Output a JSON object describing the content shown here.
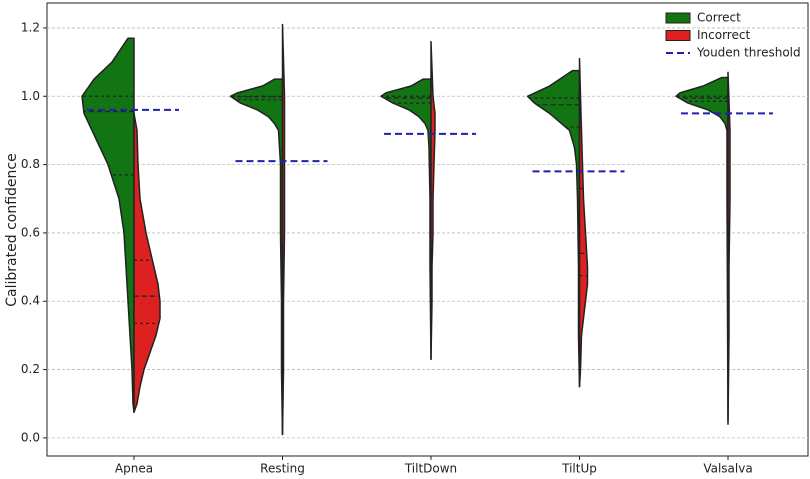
{
  "chart_data": {
    "type": "violin",
    "ylabel": "Calibrated confidence",
    "categories": [
      "Apnea",
      "Resting",
      "TiltDown",
      "TiltUp",
      "Valsalva"
    ],
    "ylim": [
      -0.053,
      1.273
    ],
    "yticks": [
      {
        "value": 0,
        "label": "0.0"
      },
      0.2,
      0.4,
      0.6,
      0.8,
      {
        "value": 1,
        "label": "1.0"
      },
      1.2
    ],
    "grid": true,
    "legend": "upper right",
    "series": [
      {
        "name": "Correct",
        "color": "#137413",
        "side": "left",
        "violins": [
          {
            "y": [
              1.17,
              1.1,
              1.05,
              1.0,
              0.95,
              0.9,
              0.8,
              0.7,
              0.6,
              0.5,
              0.4,
              0.3,
              0.2,
              0.1,
              0.075
            ],
            "width": [
              6,
              22,
              40,
              52,
              50,
              42,
              26,
              15,
              10,
              8,
              6,
              4,
              2,
              1,
              0
            ],
            "quartiles": [
              0.77,
              0.955,
              1.0
            ]
          },
          {
            "y": [
              1.05,
              1.03,
              1.01,
              1.0,
              0.98,
              0.96,
              0.94,
              0.92,
              0.9,
              0.8,
              0.6,
              0.4,
              0.2,
              0.01
            ],
            "width": [
              8,
              20,
              45,
              52,
              42,
              25,
              14,
              8,
              4,
              2,
              2,
              1,
              1,
              0
            ],
            "quartiles": [
              0.99,
              0.998,
              1.0
            ]
          },
          {
            "y": [
              1.05,
              1.03,
              1.01,
              1.0,
              0.98,
              0.96,
              0.94,
              0.92,
              0.9,
              0.85,
              0.7,
              0.5,
              0.23
            ],
            "width": [
              8,
              20,
              45,
              50,
              38,
              22,
              12,
              6,
              3,
              2,
              1,
              1,
              0
            ],
            "quartiles": [
              0.98,
              0.995,
              1.0
            ]
          },
          {
            "y": [
              1.075,
              1.03,
              1.0,
              0.98,
              0.95,
              0.92,
              0.9,
              0.85,
              0.8,
              0.7,
              0.5,
              0.3,
              0.15
            ],
            "width": [
              7,
              30,
              52,
              45,
              30,
              18,
              10,
              5,
              3,
              2,
              1,
              1,
              0
            ],
            "quartiles": [
              0.91,
              0.975,
              0.995
            ]
          },
          {
            "y": [
              1.055,
              1.03,
              1.01,
              1.0,
              0.98,
              0.96,
              0.94,
              0.92,
              0.9,
              0.7,
              0.05
            ],
            "width": [
              6,
              25,
              48,
              52,
              40,
              20,
              8,
              3,
              1,
              1,
              0
            ],
            "quartiles": [
              0.985,
              0.995,
              1.0
            ]
          }
        ]
      },
      {
        "name": "Incorrect",
        "color": "#dd2020",
        "side": "right",
        "violins": [
          {
            "y": [
              0.95,
              0.9,
              0.8,
              0.7,
              0.6,
              0.5,
              0.45,
              0.4,
              0.35,
              0.3,
              0.25,
              0.2,
              0.15,
              0.1,
              0.075
            ],
            "width": [
              0,
              3,
              4,
              6,
              12,
              20,
              24,
              26,
              26,
              22,
              16,
              10,
              6,
              3,
              0
            ],
            "quartiles": [
              0.335,
              0.415,
              0.52
            ]
          },
          {
            "y": [
              1.21,
              1.0,
              0.8,
              0.6,
              0.4,
              0.2,
              0.01
            ],
            "width": [
              0,
              2,
              2,
              2,
              1,
              1,
              0
            ]
          },
          {
            "y": [
              1.16,
              1.0,
              0.95,
              0.9,
              0.8,
              0.7,
              0.6,
              0.5,
              0.4,
              0.23
            ],
            "width": [
              0,
              2,
              4,
              4,
              3,
              2,
              2,
              1,
              1,
              0
            ]
          },
          {
            "y": [
              1.11,
              1.0,
              0.9,
              0.8,
              0.7,
              0.6,
              0.5,
              0.45,
              0.4,
              0.35,
              0.3,
              0.2,
              0.15
            ],
            "width": [
              0,
              1,
              2,
              3,
              4,
              6,
              8,
              8,
              6,
              4,
              2,
              1,
              0
            ],
            "quartiles": [
              0.475,
              0.54,
              0.73
            ]
          },
          {
            "y": [
              1.07,
              0.9,
              0.7,
              0.5,
              0.3,
              0.04
            ],
            "width": [
              0,
              2,
              2,
              1,
              1,
              0
            ]
          }
        ]
      },
      {
        "name": "Youden threshold",
        "color": "#2020b0",
        "values": [
          0.96,
          0.81,
          0.89,
          0.78,
          0.95
        ]
      }
    ]
  }
}
